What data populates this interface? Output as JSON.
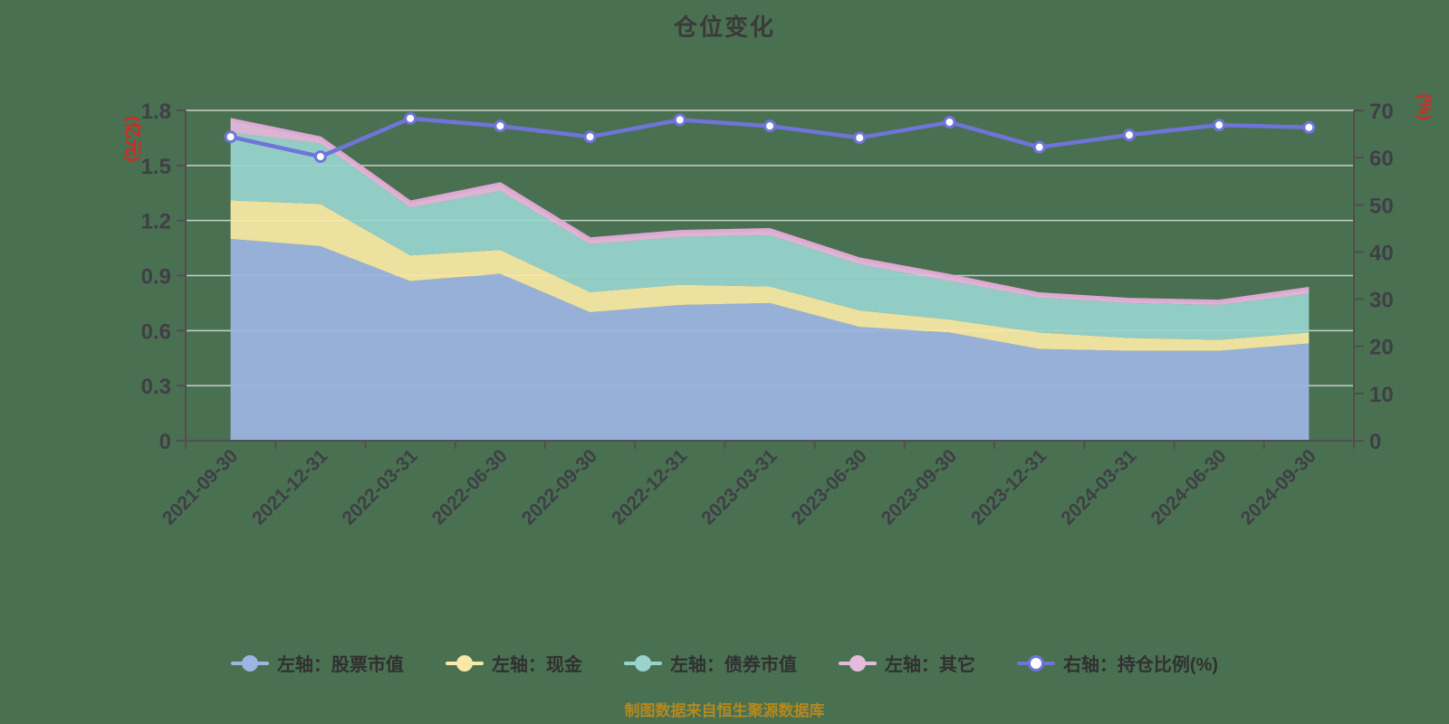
{
  "title": "仓位变化",
  "footer": "制图数据来自恒生聚源数据库",
  "colors": {
    "background": "#4a7052",
    "title_text": "#3a3a3a",
    "axis_label_text": "#3f3f46",
    "axis_line": "#4f4f4f",
    "grid_line": "#c9cfc9",
    "axis_name_text": "#d42a20",
    "footer_text": "#b5891e",
    "legend_text": "#303030",
    "stock_area": "#9cb5e2",
    "cash_area": "#fae9a6",
    "bond_area": "#98d4cd",
    "other_area": "#e5bbdd",
    "other_stroke": "#dfa8d3",
    "ratio_line": "#6f74d9",
    "dot_fill": "#ffffff"
  },
  "left_axis": {
    "name": "(亿元)",
    "ticks": [
      "0",
      "0.3",
      "0.6",
      "0.9",
      "1.2",
      "1.5",
      "1.8"
    ]
  },
  "right_axis": {
    "name": "(%)",
    "ticks": [
      "0",
      "10",
      "20",
      "30",
      "40",
      "50",
      "60",
      "70"
    ]
  },
  "legend": [
    {
      "label": "左轴：股票市值",
      "color": "#9cb5e2",
      "marker": "area"
    },
    {
      "label": "左轴：现金",
      "color": "#fae9a6",
      "marker": "area"
    },
    {
      "label": "左轴：债券市值",
      "color": "#98d4cd",
      "marker": "area"
    },
    {
      "label": "左轴：其它",
      "color": "#e5bbdd",
      "marker": "area"
    },
    {
      "label": "右轴：持仓比例(%)",
      "color": "#6f74d9",
      "marker": "line"
    }
  ],
  "chart_data": {
    "type": "area",
    "title": "仓位变化",
    "grid": true,
    "legend_position": "bottom",
    "left_ylim": [
      0,
      1.8
    ],
    "right_ylim": [
      0,
      70
    ],
    "categories": [
      "2021-09-30",
      "2021-12-31",
      "2022-03-31",
      "2022-06-30",
      "2022-09-30",
      "2022-12-31",
      "2023-03-31",
      "2023-06-30",
      "2023-09-30",
      "2023-12-31",
      "2024-03-31",
      "2024-06-30",
      "2024-09-30"
    ],
    "series": [
      {
        "key": "stock",
        "name": "左轴：股票市值",
        "axis": "left",
        "stacked": true,
        "color": "#9cb5e2",
        "values": [
          1.1,
          1.06,
          0.87,
          0.91,
          0.7,
          0.74,
          0.75,
          0.62,
          0.59,
          0.5,
          0.49,
          0.49,
          0.53
        ]
      },
      {
        "key": "cash",
        "name": "左轴：现金",
        "axis": "left",
        "stacked": true,
        "color": "#fae9a6",
        "values": [
          0.21,
          0.23,
          0.14,
          0.13,
          0.11,
          0.11,
          0.09,
          0.09,
          0.07,
          0.09,
          0.07,
          0.06,
          0.06
        ]
      },
      {
        "key": "bond",
        "name": "左轴：债券市值",
        "axis": "left",
        "stacked": true,
        "color": "#98d4cd",
        "values": [
          0.37,
          0.33,
          0.26,
          0.32,
          0.26,
          0.26,
          0.28,
          0.25,
          0.21,
          0.19,
          0.19,
          0.19,
          0.21
        ]
      },
      {
        "key": "other",
        "name": "左轴：其它",
        "axis": "left",
        "stacked": true,
        "color": "#e5bbdd",
        "values": [
          0.07,
          0.03,
          0.03,
          0.04,
          0.03,
          0.03,
          0.03,
          0.03,
          0.03,
          0.02,
          0.02,
          0.02,
          0.03
        ]
      },
      {
        "key": "ratio",
        "name": "右轴：持仓比例(%)",
        "axis": "right",
        "type": "line",
        "color": "#6f74d9",
        "values": [
          64.4,
          60.2,
          68.3,
          66.7,
          64.4,
          68.0,
          66.7,
          64.2,
          67.5,
          62.2,
          64.8,
          66.9,
          66.4
        ]
      }
    ]
  }
}
